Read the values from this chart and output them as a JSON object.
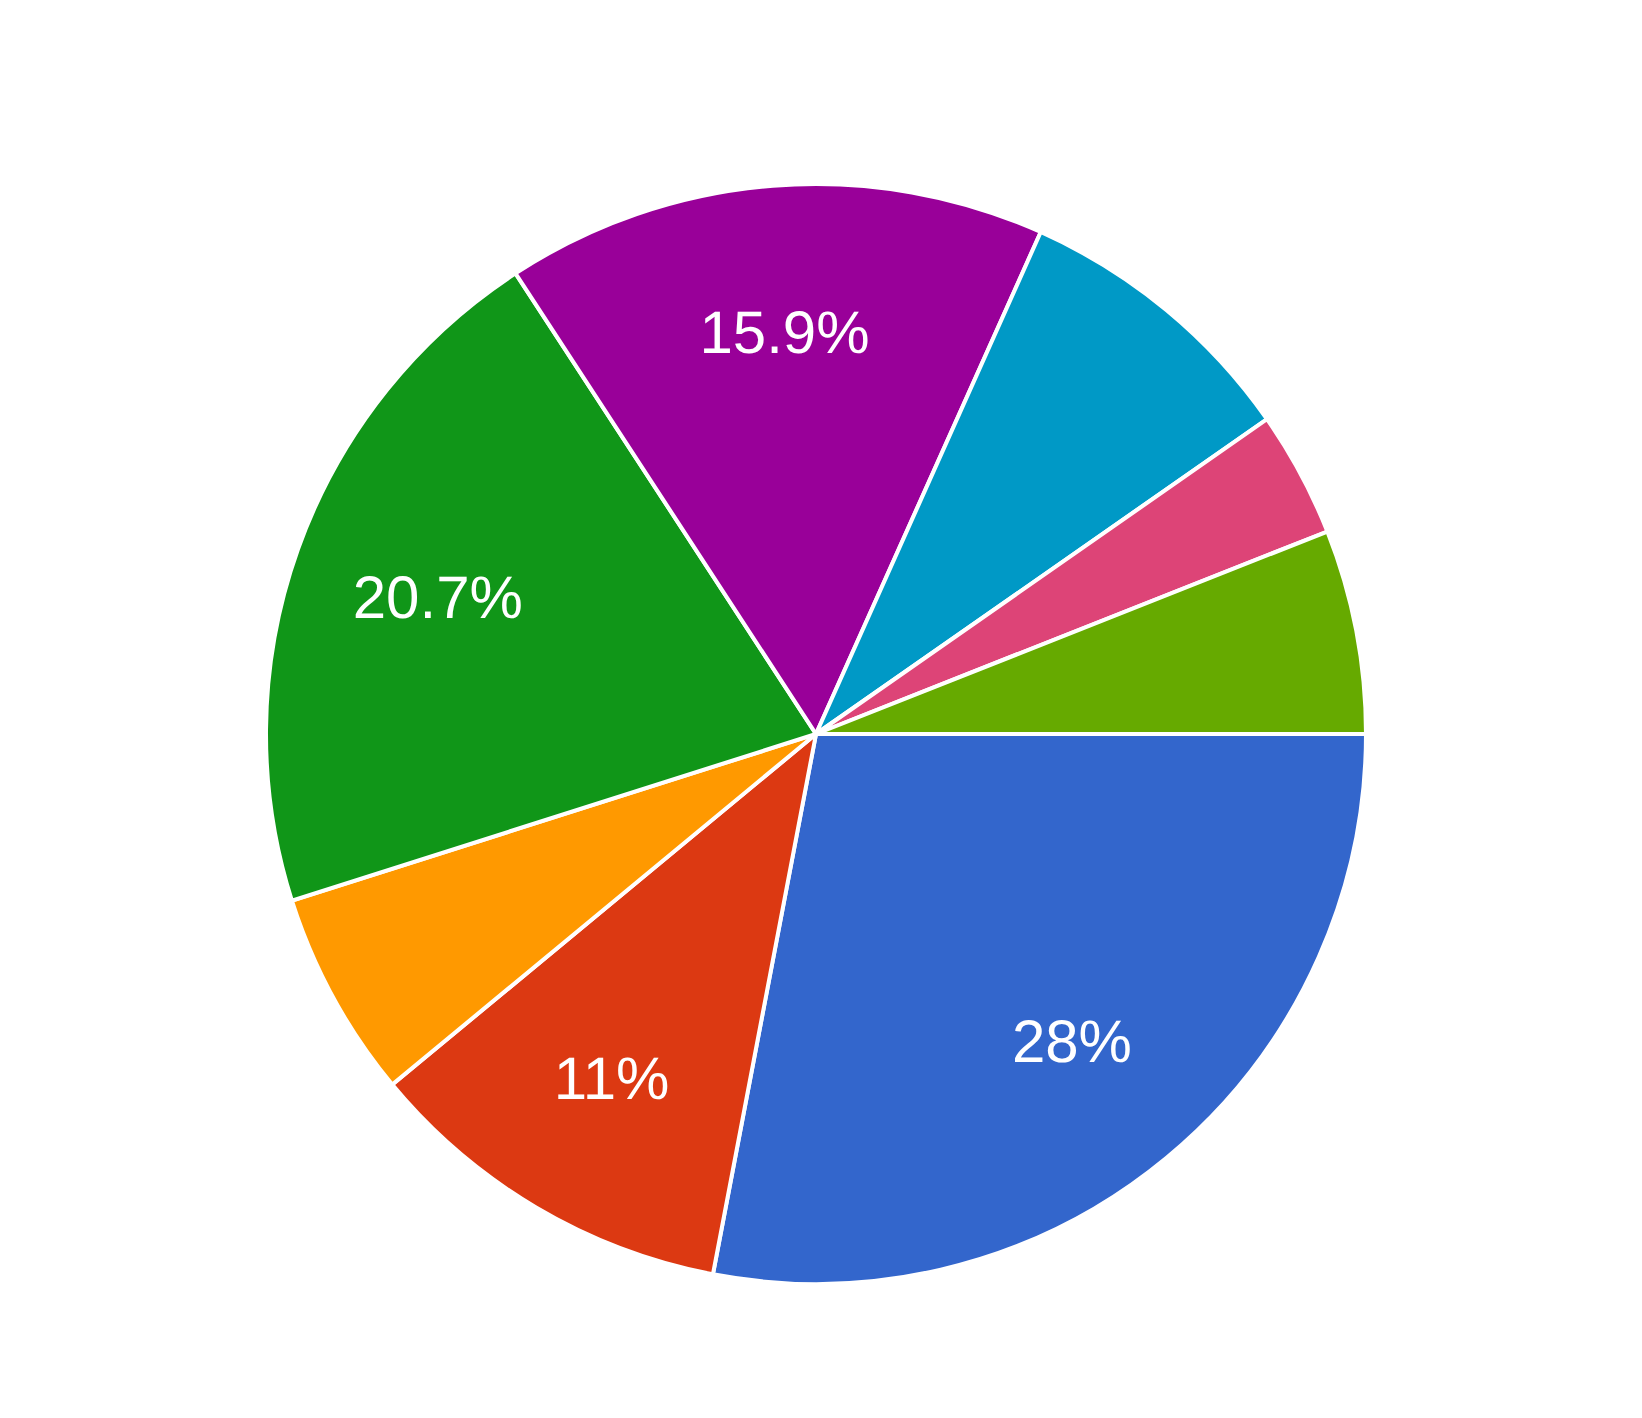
{
  "chart_data": {
    "type": "pie",
    "categories": [
      null,
      null,
      null,
      null,
      null,
      null,
      null,
      null
    ],
    "values": [
      28,
      11,
      6.1,
      20.7,
      15.9,
      8.6,
      3.7,
      6.0
    ],
    "colors": [
      "#3366cc",
      "#dc3912",
      "#ff9900",
      "#109618",
      "#990099",
      "#0099c6",
      "#dd4477",
      "#66aa00"
    ],
    "value_labels": [
      "28%",
      "11%",
      null,
      "20.7%",
      "15.9%",
      null,
      null,
      null
    ],
    "legend": false
  }
}
